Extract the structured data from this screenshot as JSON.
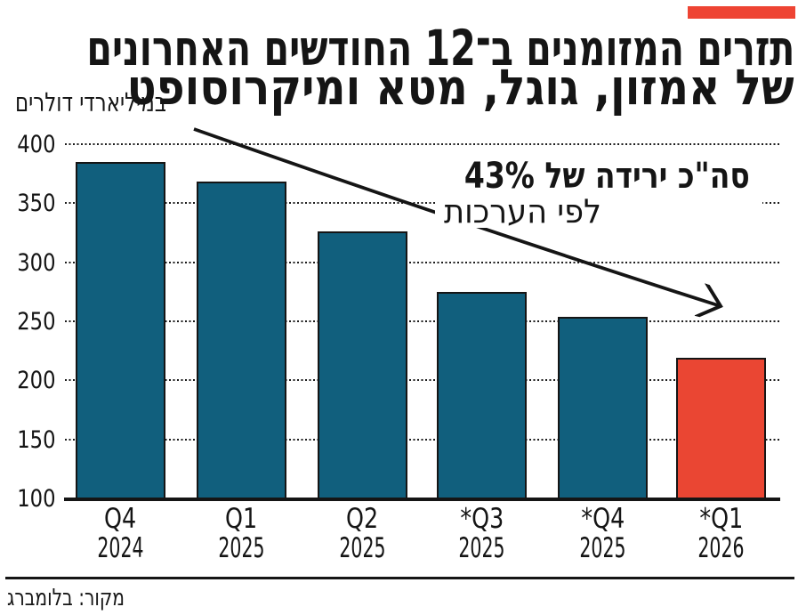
{
  "brand": {
    "flag_color": "#ee4433"
  },
  "header": {
    "title_line1": "תזרים המזומנים ב־12 החודשים האחרונים",
    "title_line2": "של אמזון, גוגל, מטא ומיקרוסופט",
    "unit_label": "במיליארדי דולרים"
  },
  "annotation": {
    "headline": "סה\"כ ירידה של 43%",
    "subtext": "לפי הערכות"
  },
  "footer": {
    "source": "מקור: בלומברג"
  },
  "chart_data": {
    "type": "bar",
    "title": "תזרים המזומנים ב־12 החודשים האחרונים של אמזון, גוגל, מטא ומיקרוסופט",
    "ylabel": "במיליארדי דולרים",
    "categories": [
      [
        "Q4",
        "2024"
      ],
      [
        "Q1",
        "2025"
      ],
      [
        "Q2",
        "2025"
      ],
      [
        "*Q3",
        "2025"
      ],
      [
        "*Q4",
        "2025"
      ],
      [
        "*Q1",
        "2026"
      ]
    ],
    "values": [
      385,
      368,
      326,
      275,
      254,
      219
    ],
    "highlight_index": 5,
    "bar_color": "#115f7d",
    "highlight_color": "#ea4633",
    "yticks": [
      100,
      150,
      200,
      250,
      300,
      350,
      400
    ],
    "ylim": [
      100,
      400
    ],
    "grid": "horizontal-dotted",
    "annotation": "סה\"כ ירידה של 43% לפי הערכות",
    "source": "מקור: בלומברג"
  }
}
